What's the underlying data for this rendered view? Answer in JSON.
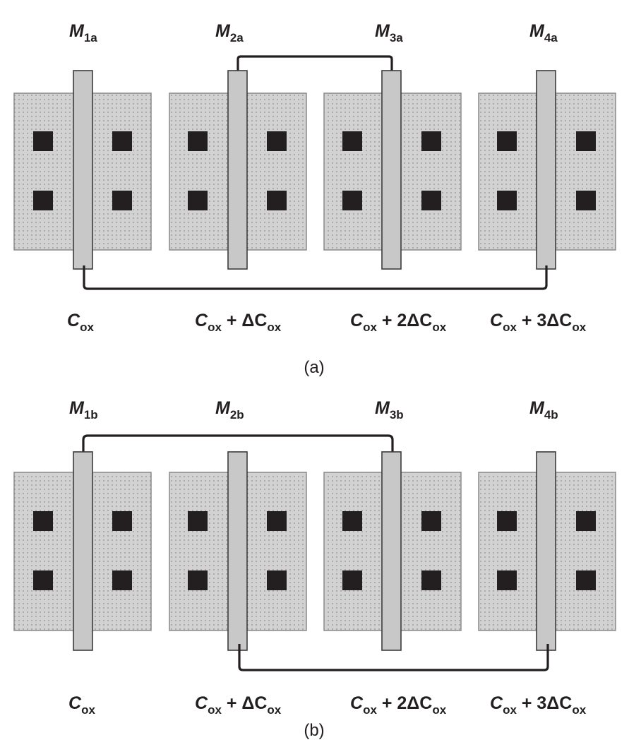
{
  "panels": [
    {
      "caption": "(a)",
      "transistors": [
        {
          "name": "M",
          "sub": "1a"
        },
        {
          "name": "M",
          "sub": "2a"
        },
        {
          "name": "M",
          "sub": "3a"
        },
        {
          "name": "M",
          "sub": "4a"
        }
      ],
      "capacitances": [
        {
          "sym": "C",
          "sub": "ox",
          "suffix": ""
        },
        {
          "sym": "C",
          "sub": "ox",
          "suffix": " + ΔC"
        },
        {
          "sym": "C",
          "sub": "ox",
          "suffix": " + 2ΔC"
        },
        {
          "sym": "C",
          "sub": "ox",
          "suffix": " + 3ΔC"
        }
      ]
    },
    {
      "caption": "(b)",
      "transistors": [
        {
          "name": "M",
          "sub": "1b"
        },
        {
          "name": "M",
          "sub": "2b"
        },
        {
          "name": "M",
          "sub": "3b"
        },
        {
          "name": "M",
          "sub": "4b"
        }
      ],
      "capacitances": [
        {
          "sym": "C",
          "sub": "ox",
          "suffix": ""
        },
        {
          "sym": "C",
          "sub": "ox",
          "suffix": " + ΔC"
        },
        {
          "sym": "C",
          "sub": "ox",
          "suffix": " + 2ΔC"
        },
        {
          "sym": "C",
          "sub": "ox",
          "suffix": " + 3ΔC"
        }
      ]
    }
  ],
  "colors": {
    "active_fill": "#d2d2d2",
    "gate_fill": "#c8c8c8",
    "contact": "#231f20",
    "wire": "#231f20"
  }
}
